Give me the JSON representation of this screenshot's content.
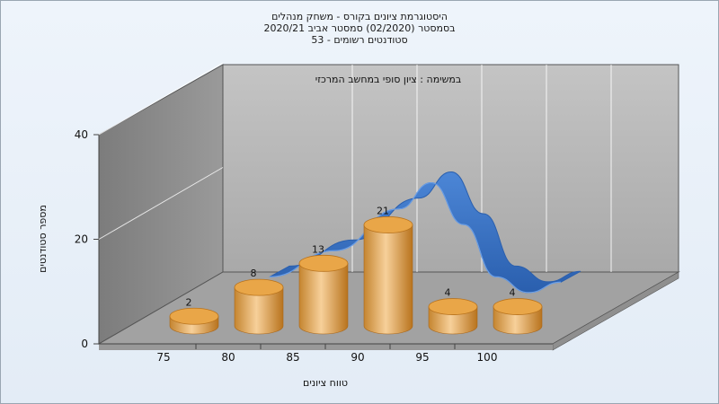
{
  "chart_data": {
    "type": "bar",
    "title_lines": [
      "היסטוגרמת ציונים בקורס - משחק מנהלים",
      "בסמסטר (02/2020) סמסטר אביב 2020/21",
      "סטודנטים רשומים - 53"
    ],
    "subtitle": "במשימה : ציון סופי במחשב המרכזי",
    "xlabel": "טווח ציונים",
    "ylabel": "מספר סטודנטים",
    "x_ticks": [
      "75",
      "80",
      "85",
      "90",
      "95",
      "100"
    ],
    "y_ticks": [
      "0",
      "20",
      "40"
    ],
    "ylim": [
      0,
      40
    ],
    "bars": [
      {
        "x": 75,
        "value": 2,
        "label": "2"
      },
      {
        "x": 80,
        "value": 8,
        "label": "8"
      },
      {
        "x": 85,
        "value": 13,
        "label": "13"
      },
      {
        "x": 90,
        "value": 21,
        "label": "21"
      },
      {
        "x": 95,
        "value": 4,
        "label": "4"
      },
      {
        "x": 100,
        "value": 4,
        "label": "4"
      }
    ],
    "curve": {
      "type": "line",
      "x": [
        80,
        85,
        90,
        92.5,
        95,
        97.5,
        100,
        102.5
      ],
      "y": [
        8,
        13,
        21,
        26,
        18,
        8,
        5,
        7
      ]
    },
    "colors": {
      "bar": "#e8a64a",
      "bar_dark": "#b9741f",
      "curve": "#3a72c2",
      "back_wall": "#b3b3b3",
      "side_wall": "#8a8a8a",
      "floor": "#a2a2a2"
    }
  }
}
